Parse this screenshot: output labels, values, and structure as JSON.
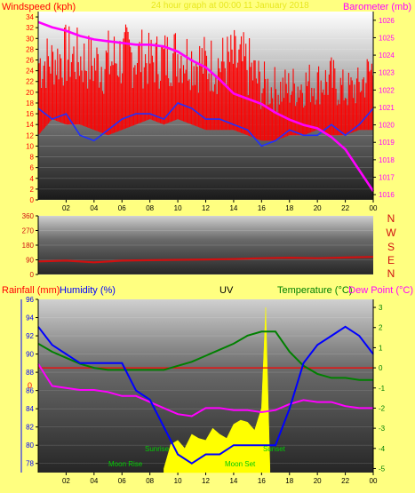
{
  "header": {
    "left_label": "Windspeed (kph)",
    "center_label": "24 hour graph at 00:00 11 January 2018",
    "right_label": "Barometer (mb)"
  },
  "panel2": {
    "direction_letters": [
      "N",
      "W",
      "S",
      "E",
      "N"
    ]
  },
  "panel3": {
    "rain_label": "Rainfall (mm)",
    "humidity_label": "Humidity (%)",
    "uv_label": "UV",
    "temp_label": "Temperature (°C)",
    "dew_label": "Dew Point (°C)",
    "markers": {
      "sunrise": "Sunrise",
      "sunset": "Sunset",
      "moonrise": "Moon Rise",
      "moonset": "Moon Set"
    }
  },
  "colors": {
    "background": "#ffff80",
    "wind_gust": "#ff0000",
    "wind_avg": "#2030ff",
    "barometer": "#ff00ff",
    "direction": "#d01010",
    "temperature": "#008000",
    "dewpoint": "#ff00ff",
    "humidity": "#0000ff",
    "uv": "#ffff00",
    "rain_zero": "#ff0000"
  },
  "chart_data": [
    {
      "type": "line",
      "x_tick_labels": [
        "02",
        "04",
        "06",
        "08",
        "10",
        "12",
        "14",
        "16",
        "18",
        "20",
        "22",
        "00"
      ],
      "left_axis": {
        "label": "Windspeed (kph)",
        "ticks": [
          "0",
          "2",
          "4",
          "6",
          "8",
          "10",
          "12",
          "14",
          "16",
          "18",
          "20",
          "22",
          "24",
          "26",
          "28",
          "30",
          "32",
          "34"
        ],
        "ylim": [
          0,
          35
        ]
      },
      "right_axis": {
        "label": "Barometer (mb)",
        "ticks": [
          "1016",
          "1017",
          "1018",
          "1019",
          "1020",
          "1021",
          "1022",
          "1023",
          "1024",
          "1025",
          "1026"
        ],
        "ylim": [
          1015.7,
          1026.5
        ]
      },
      "series": [
        {
          "name": "Windspeed (kph)",
          "axis": "left",
          "hours": [
            0,
            1,
            2,
            3,
            4,
            5,
            6,
            7,
            8,
            9,
            10,
            11,
            12,
            13,
            14,
            15,
            16,
            17,
            18,
            19,
            20,
            21,
            22,
            23,
            24
          ],
          "values": [
            17,
            15,
            16,
            12,
            11,
            13,
            15,
            16,
            16,
            15,
            18,
            17,
            15,
            15,
            14,
            13,
            10,
            11,
            13,
            12,
            12,
            14,
            12,
            14,
            17
          ]
        },
        {
          "name": "Barometer (mb)",
          "axis": "right",
          "hours": [
            0,
            1,
            2,
            3,
            4,
            5,
            6,
            7,
            8,
            9,
            10,
            11,
            12,
            13,
            14,
            15,
            16,
            17,
            18,
            19,
            20,
            21,
            22,
            23,
            24
          ],
          "values": [
            1025.9,
            1025.6,
            1025.4,
            1025.1,
            1024.9,
            1024.8,
            1024.7,
            1024.6,
            1024.6,
            1024.5,
            1024.2,
            1023.7,
            1023.3,
            1022.6,
            1021.8,
            1021.5,
            1021.2,
            1020.7,
            1020.3,
            1020.0,
            1019.8,
            1019.3,
            1018.6,
            1017.4,
            1016.2
          ]
        }
      ],
      "gust_band": {
        "hours": [
          0,
          1,
          2,
          3,
          4,
          5,
          6,
          7,
          8,
          9,
          10,
          11,
          12,
          13,
          14,
          15,
          16,
          17,
          18,
          19,
          20,
          21,
          22,
          23,
          24
        ],
        "low": [
          12,
          15,
          14,
          14,
          13,
          12,
          13,
          14,
          15,
          14,
          15,
          14,
          13,
          13,
          13,
          12,
          11,
          11,
          12,
          12,
          13,
          12,
          12,
          13,
          13
        ],
        "high": [
          32,
          31,
          33,
          32,
          31,
          32,
          33,
          33,
          31,
          32,
          33,
          32,
          31,
          31,
          32,
          31,
          26,
          25,
          25,
          26,
          26,
          27,
          24,
          25,
          30
        ]
      }
    },
    {
      "type": "line",
      "left_axis": {
        "ticks": [
          "0",
          "90",
          "180",
          "270",
          "360"
        ],
        "ylim": [
          0,
          360
        ]
      },
      "series": [
        {
          "name": "Wind Direction",
          "hours": [
            0,
            2,
            4,
            6,
            8,
            10,
            12,
            14,
            16,
            18,
            20,
            22,
            24
          ],
          "values": [
            80,
            85,
            75,
            85,
            88,
            90,
            92,
            95,
            100,
            103,
            100,
            104,
            108
          ]
        }
      ]
    },
    {
      "type": "line",
      "humidity_axis": {
        "label": "Humidity (%)",
        "ticks": [
          "78",
          "80",
          "82",
          "84",
          "86",
          "88",
          "90",
          "92",
          "94",
          "96"
        ],
        "ylim": [
          77,
          96
        ]
      },
      "temp_axis": {
        "label": "Temperature (°C)",
        "ticks": [
          "-5",
          "-4",
          "-3",
          "-2",
          "-1",
          "0",
          "1",
          "2",
          "3"
        ],
        "ylim": [
          -5.2,
          3.4
        ]
      },
      "rain_zero_label": "0",
      "series": [
        {
          "name": "Humidity (%)",
          "axis": "humidity",
          "hours": [
            0,
            1,
            2,
            3,
            4,
            5,
            6,
            7,
            8,
            9,
            10,
            11,
            12,
            13,
            14,
            15,
            16,
            17,
            18,
            19,
            20,
            21,
            22,
            23,
            24
          ],
          "values": [
            93,
            91,
            90,
            89,
            89,
            89,
            89,
            86,
            85,
            82,
            79,
            78,
            79,
            79,
            80,
            80,
            80,
            80,
            84,
            89,
            91,
            92,
            93,
            92,
            90
          ]
        },
        {
          "name": "Temperature (°C)",
          "axis": "temp",
          "hours": [
            0,
            1,
            2,
            3,
            4,
            5,
            6,
            7,
            8,
            9,
            10,
            11,
            12,
            13,
            14,
            15,
            16,
            17,
            18,
            19,
            20,
            21,
            22,
            23,
            24
          ],
          "values": [
            1.2,
            0.8,
            0.5,
            0.2,
            0.0,
            -0.1,
            -0.1,
            -0.1,
            -0.1,
            -0.1,
            0.1,
            0.3,
            0.6,
            0.9,
            1.2,
            1.6,
            1.8,
            1.8,
            0.8,
            0.1,
            -0.3,
            -0.5,
            -0.5,
            -0.6,
            -0.6
          ]
        },
        {
          "name": "Dew Point (°C)",
          "axis": "temp",
          "hours": [
            0,
            1,
            2,
            3,
            4,
            5,
            6,
            7,
            8,
            9,
            10,
            11,
            12,
            13,
            14,
            15,
            16,
            17,
            18,
            19,
            20,
            21,
            22,
            23,
            24
          ],
          "values": [
            0.2,
            -0.9,
            -1.0,
            -1.1,
            -1.1,
            -1.2,
            -1.4,
            -1.4,
            -1.7,
            -2.0,
            -2.3,
            -2.4,
            -2.0,
            -2.0,
            -2.1,
            -2.1,
            -2.2,
            -2.1,
            -1.8,
            -1.6,
            -1.7,
            -1.7,
            -1.9,
            -2.0,
            -2.0
          ]
        },
        {
          "name": "UV",
          "axis": "temp",
          "hours": [
            9,
            9.5,
            10,
            10.5,
            11,
            11.5,
            12,
            12.5,
            13,
            13.5,
            14,
            14.5,
            15,
            15.5,
            16,
            16.3,
            16.6
          ],
          "values": [
            -5.0,
            -3.8,
            -3.6,
            -4.0,
            -3.3,
            -3.5,
            -3.6,
            -3.0,
            -3.3,
            -3.5,
            -2.8,
            -2.6,
            -2.7,
            -3.1,
            -2.0,
            3.0,
            -5.0
          ]
        }
      ]
    }
  ]
}
